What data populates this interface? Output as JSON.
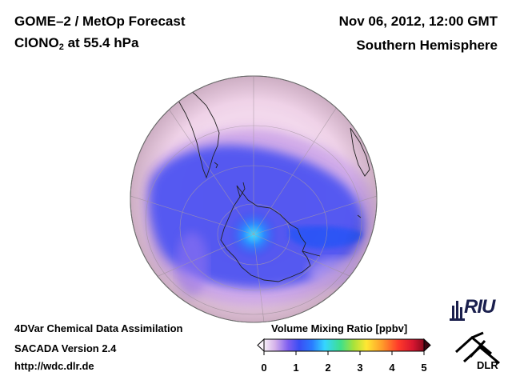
{
  "header": {
    "title_line1": "GOME–2 / MetOp Forecast",
    "species_main": "ClONO",
    "species_sub": "2",
    "species_level": " at 55.4 hPa",
    "datetime": "Nov 06, 2012, 12:00 GMT",
    "region": "Southern Hemisphere"
  },
  "footer": {
    "line1": "4DVar Chemical Data Assimilation",
    "line2": "SACADA Version 2.4",
    "line3": "http://wdc.dlr.de"
  },
  "colorbar": {
    "title": "Volume Mixing Ratio [ppbv]",
    "ticks": [
      "0",
      "1",
      "2",
      "3",
      "4",
      "5"
    ],
    "range": [
      0,
      5
    ],
    "colors": [
      "#f7eef7",
      "#e8c8ec",
      "#c79ae6",
      "#8f6cf0",
      "#3f4ef4",
      "#2a7cff",
      "#35d6ff",
      "#3fe08a",
      "#a8e23a",
      "#ffe733",
      "#ff9a2a",
      "#ff3a2a",
      "#d81630",
      "#8a0a1e"
    ]
  },
  "map": {
    "projection": "orthographic",
    "hemisphere": "Southern",
    "background_color": "#f2dbe9",
    "pole_peak_color": "#2fd2ff",
    "vortex_color": "#3f4bf2"
  },
  "logos": {
    "riu": "RIU",
    "dlr": "DLR"
  }
}
